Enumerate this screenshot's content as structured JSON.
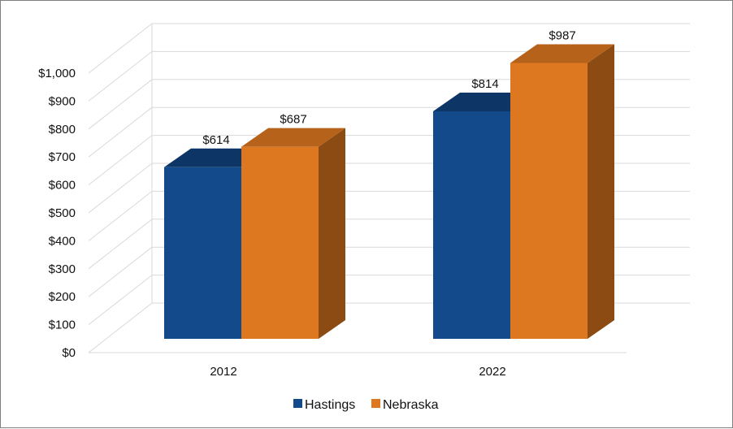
{
  "chart_data": {
    "type": "bar",
    "style": "3d-clustered-column",
    "categories": [
      "2012",
      "2022"
    ],
    "series": [
      {
        "name": "Hastings",
        "values": [
          614,
          814
        ],
        "labels": [
          "$614",
          "$814"
        ],
        "color": "#124a8c",
        "top_color": "#0d3566"
      },
      {
        "name": "Nebraska",
        "values": [
          687,
          987
        ],
        "labels": [
          "$687",
          "$987"
        ],
        "color": "#dd7820",
        "top_color": "#b7621a",
        "side_color": "#8b4b13"
      }
    ],
    "yticks": [
      "$0",
      "$100",
      "$200",
      "$300",
      "$400",
      "$500",
      "$600",
      "$700",
      "$800",
      "$900",
      "$1,000"
    ],
    "ylim": [
      0,
      1000
    ],
    "grid": true,
    "legend_position": "bottom",
    "title": "",
    "xlabel": "",
    "ylabel": ""
  }
}
